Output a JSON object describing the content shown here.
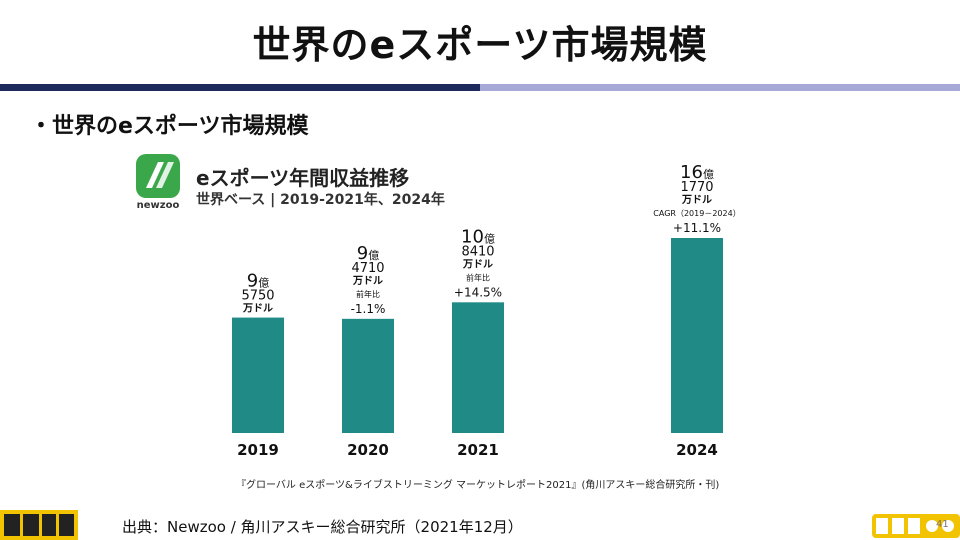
{
  "slide_title": "世界のeスポーツ市場規模",
  "bullet": "・世界のeスポーツ市場規模",
  "newzoo_logo_text": "newzoo",
  "source_note": "『グローバル eスポーツ&ライブストリーミング マーケットレポート2021』(角川アスキー総合研究所・刊)",
  "citation": "出典：Newzoo / 角川アスキー総合研究所（2021年12月）",
  "page_number": "41",
  "colors": {
    "bar": "#1f8a86",
    "rule_dark": "#1f2a5c",
    "rule_light": "#a6a8d8",
    "logo_green": "#3aa84a"
  },
  "chart_data": {
    "type": "bar",
    "title": "eスポーツ年間収益推移",
    "subtitle": "世界ベース | 2019-2021年、2024年",
    "categories": [
      "2019",
      "2020",
      "2021",
      "2024"
    ],
    "values": [
      957.5,
      947.1,
      1084.1,
      1617.7
    ],
    "unit_values": "100万ドル",
    "ylim": [
      0,
      1700
    ],
    "grid": false,
    "labels": [
      {
        "big": "9",
        "oku": "億",
        "num": "5750",
        "unit": "万ドル",
        "note": "",
        "pct": ""
      },
      {
        "big": "9",
        "oku": "億",
        "num": "4710",
        "unit": "万ドル",
        "note": "前年比",
        "pct": "-1.1%"
      },
      {
        "big": "10",
        "oku": "億",
        "num": "8410",
        "unit": "万ドル",
        "note": "前年比",
        "pct": "+14.5%"
      },
      {
        "big": "16",
        "oku": "億",
        "num": "1770",
        "unit": "万ドル",
        "note": "CAGR（2019－2024）",
        "pct": "+11.1%"
      }
    ]
  }
}
